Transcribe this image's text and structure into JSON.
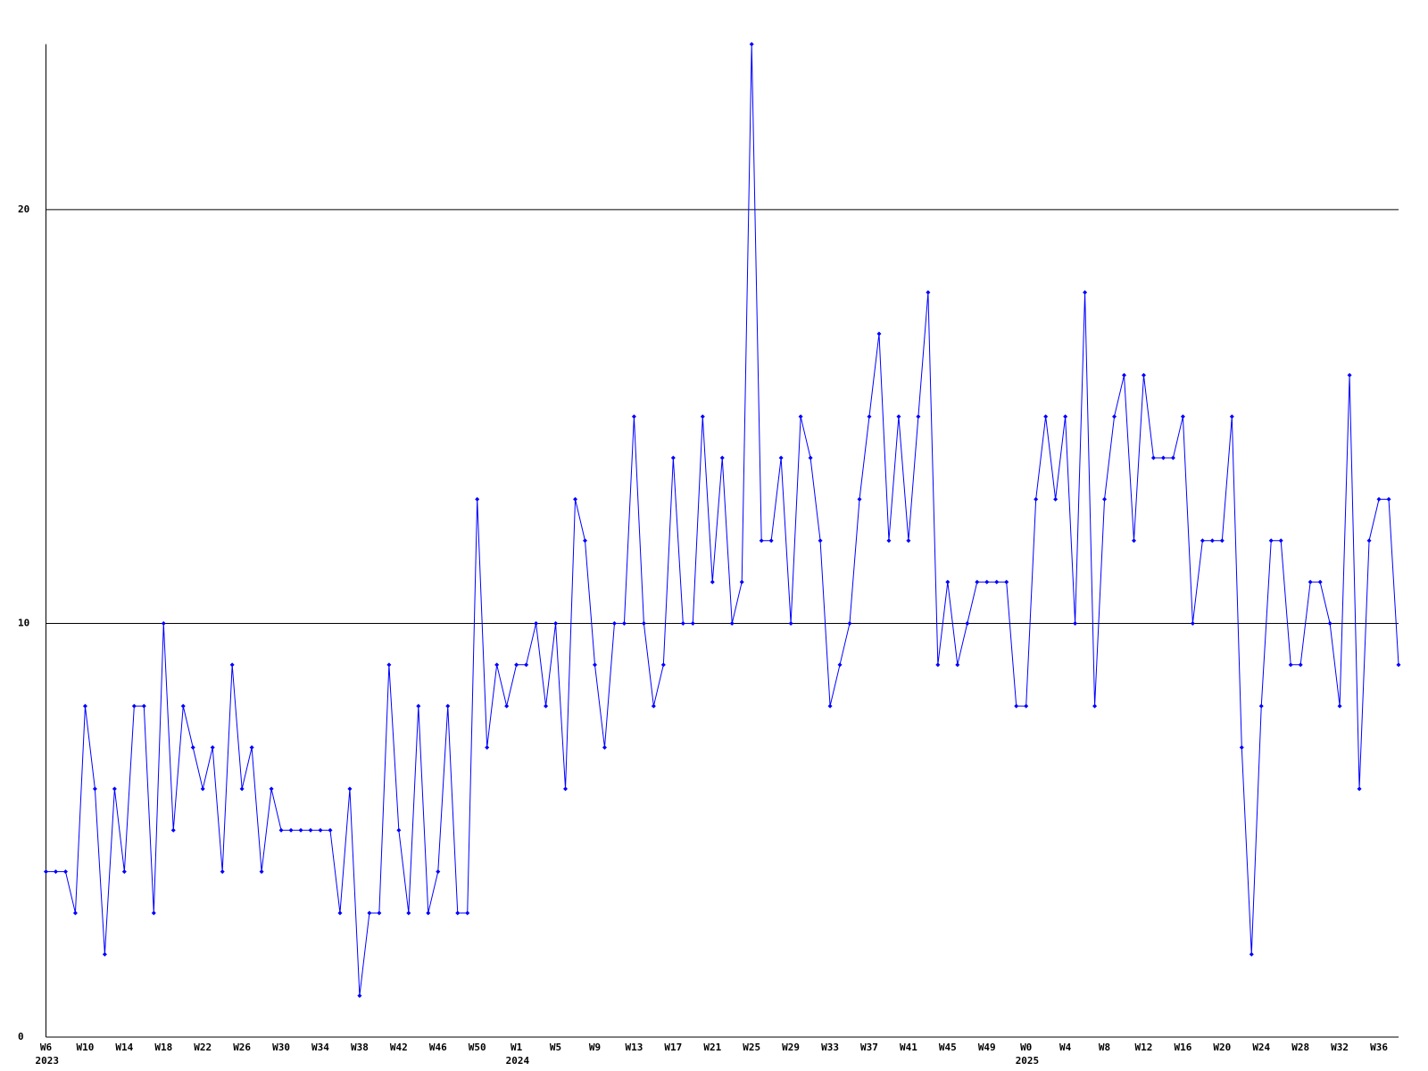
{
  "chart_data": {
    "type": "line",
    "categories": [
      "W6",
      null,
      null,
      null,
      "W10",
      null,
      null,
      null,
      "W14",
      null,
      null,
      null,
      "W18",
      null,
      null,
      null,
      "W22",
      null,
      null,
      null,
      "W26",
      null,
      null,
      null,
      "W30",
      null,
      null,
      null,
      "W34",
      null,
      null,
      null,
      "W38",
      null,
      null,
      null,
      "W42",
      null,
      null,
      null,
      "W46",
      null,
      null,
      null,
      "W50",
      null,
      null,
      null,
      "W1",
      null,
      null,
      null,
      "W5",
      null,
      null,
      null,
      "W9",
      null,
      null,
      null,
      "W13",
      null,
      null,
      null,
      "W17",
      null,
      null,
      null,
      "W21",
      null,
      null,
      null,
      "W25",
      null,
      null,
      null,
      "W29",
      null,
      null,
      null,
      "W33",
      null,
      null,
      null,
      "W37",
      null,
      null,
      null,
      "W41",
      null,
      null,
      null,
      "W45",
      null,
      null,
      null,
      "W49",
      null,
      null,
      null,
      "W0",
      null,
      null,
      null,
      "W4",
      null,
      null,
      null,
      "W8",
      null,
      null,
      null,
      "W12",
      null,
      null,
      null,
      "W16",
      null,
      null,
      null,
      "W20",
      null,
      null,
      null,
      "W24",
      null,
      null,
      null,
      "W28",
      null,
      null,
      null,
      "W32",
      null,
      null,
      null,
      "W36",
      null,
      null
    ],
    "years": [
      "2023",
      null,
      null,
      null,
      null,
      null,
      null,
      null,
      null,
      null,
      null,
      null,
      null,
      null,
      null,
      null,
      null,
      null,
      null,
      null,
      null,
      null,
      null,
      null,
      null,
      null,
      null,
      null,
      null,
      null,
      null,
      null,
      null,
      null,
      null,
      null,
      null,
      null,
      null,
      null,
      null,
      null,
      null,
      null,
      null,
      null,
      null,
      null,
      "2024",
      null,
      null,
      null,
      null,
      null,
      null,
      null,
      null,
      null,
      null,
      null,
      null,
      null,
      null,
      null,
      null,
      null,
      null,
      null,
      null,
      null,
      null,
      null,
      null,
      null,
      null,
      null,
      null,
      null,
      null,
      null,
      null,
      null,
      null,
      null,
      null,
      null,
      null,
      null,
      null,
      null,
      null,
      null,
      null,
      null,
      null,
      null,
      null,
      null,
      null,
      null,
      "2025",
      null,
      null,
      null,
      null,
      null,
      null,
      null,
      null,
      null,
      null,
      null,
      null,
      null,
      null,
      null,
      null,
      null,
      null,
      null,
      null,
      null,
      null,
      null,
      null,
      null,
      null,
      null,
      null,
      null,
      null,
      null,
      null,
      null,
      null,
      null,
      null,
      null,
      null
    ],
    "values": [
      4,
      4,
      4,
      3,
      8,
      6,
      2,
      6,
      4,
      8,
      8,
      3,
      10,
      5,
      8,
      7,
      6,
      7,
      4,
      9,
      6,
      7,
      4,
      6,
      5,
      5,
      5,
      5,
      5,
      5,
      3,
      6,
      1,
      3,
      3,
      9,
      5,
      3,
      8,
      3,
      4,
      8,
      3,
      3,
      13,
      7,
      9,
      8,
      9,
      9,
      10,
      8,
      10,
      6,
      13,
      12,
      9,
      7,
      10,
      10,
      15,
      10,
      8,
      9,
      14,
      10,
      10,
      15,
      11,
      14,
      10,
      11,
      24,
      12,
      12,
      14,
      10,
      15,
      14,
      12,
      8,
      9,
      10,
      13,
      15,
      17,
      12,
      15,
      12,
      15,
      18,
      9,
      11,
      9,
      10,
      11,
      11,
      11,
      11,
      8,
      8,
      13,
      15,
      13,
      15,
      10,
      18,
      8,
      13,
      15,
      16,
      12,
      16,
      14,
      14,
      14,
      15,
      10,
      12,
      12,
      12,
      15,
      7,
      2,
      8,
      12,
      12,
      9,
      9,
      11,
      11,
      10,
      8,
      16,
      6,
      12,
      13,
      13,
      9
    ],
    "color": "#0000ff",
    "ylim": [
      0,
      24
    ],
    "yticks": [
      0,
      10,
      20
    ],
    "grid": true
  }
}
